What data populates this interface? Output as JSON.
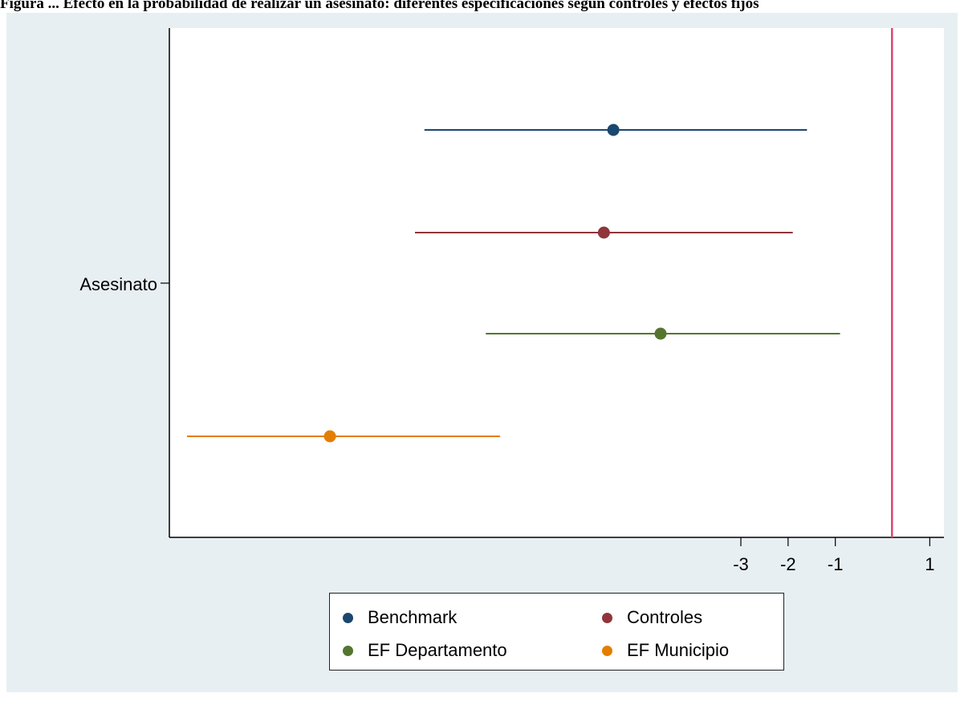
{
  "caption": "Figura ... Efecto en la probabilidad de realizar un asesinato: diferentes especificaciones según controles y efectos fijos",
  "chart_data": {
    "type": "scatter",
    "y_category": "Asesinato",
    "xticks": [
      -3,
      -2,
      -1,
      1
    ],
    "xlim": [
      -15.1,
      1.3
    ],
    "reference_line_x": 0.2,
    "series": [
      {
        "name": "Benchmark",
        "color": "#1a476f",
        "estimate": -5.7,
        "ci": [
          -9.7,
          -1.6
        ]
      },
      {
        "name": "Controles",
        "color": "#90353b",
        "estimate": -5.9,
        "ci": [
          -9.9,
          -1.9
        ]
      },
      {
        "name": "EF Departamento",
        "color": "#55752f",
        "estimate": -4.7,
        "ci": [
          -8.4,
          -0.9
        ]
      },
      {
        "name": "EF Municipio",
        "color": "#e37e00",
        "estimate": -11.7,
        "ci": [
          -15.4,
          -8.1
        ]
      }
    ],
    "legend_position": "bottom"
  },
  "colors": {
    "background": "#e8eff2",
    "plot_area": "#ffffff",
    "reference_line": "#e0476b"
  }
}
